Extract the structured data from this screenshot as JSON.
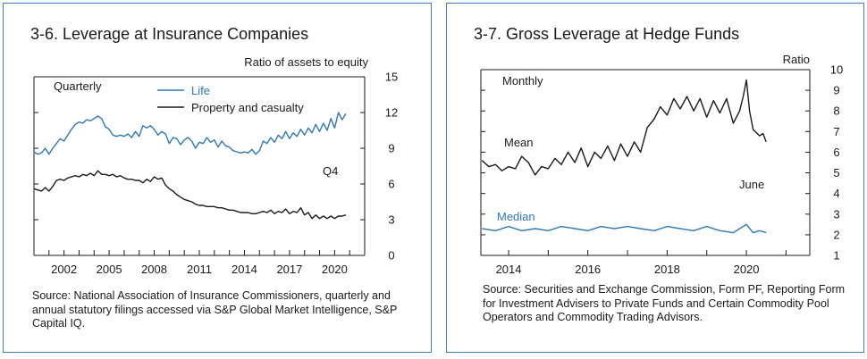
{
  "left": {
    "title": "3-6. Leverage at Insurance Companies",
    "source": "Source: National Association of Insurance Commissioners, quarterly and annual statutory filings accessed via S&P Global Market Intelligence, S&P Capital IQ."
  },
  "right": {
    "title": "3-7. Gross Leverage at Hedge Funds",
    "source": "Source: Securities and Exchange Commission, Form PF, Reporting Form for Investment Advisers to Private Funds and Certain Commodity Pool Operators and Commodity Trading Advisors."
  },
  "chart_data": [
    {
      "type": "line",
      "title": "3-6. Leverage at Insurance Companies",
      "ylabel": "Ratio of assets to equity",
      "frequency_label": "Quarterly",
      "end_label": "Q4",
      "xlim": [
        2000,
        2022
      ],
      "ylim": [
        0,
        15
      ],
      "x_ticks": [
        2002,
        2005,
        2008,
        2011,
        2014,
        2017,
        2020
      ],
      "y_ticks": [
        0,
        3,
        6,
        9,
        12,
        15
      ],
      "legend_position": "top-center",
      "series": [
        {
          "name": "Life",
          "color": "#2f78b6",
          "points": [
            [
              2000.0,
              8.7
            ],
            [
              2000.25,
              8.5
            ],
            [
              2000.5,
              8.6
            ],
            [
              2000.75,
              9.0
            ],
            [
              2001.0,
              8.5
            ],
            [
              2001.25,
              9.0
            ],
            [
              2001.5,
              9.4
            ],
            [
              2001.75,
              9.8
            ],
            [
              2002.0,
              9.6
            ],
            [
              2002.25,
              10.1
            ],
            [
              2002.5,
              10.6
            ],
            [
              2002.75,
              11.0
            ],
            [
              2003.0,
              11.2
            ],
            [
              2003.25,
              11.1
            ],
            [
              2003.5,
              11.4
            ],
            [
              2003.75,
              11.3
            ],
            [
              2004.0,
              11.5
            ],
            [
              2004.25,
              11.7
            ],
            [
              2004.5,
              11.5
            ],
            [
              2004.75,
              10.8
            ],
            [
              2005.0,
              10.6
            ],
            [
              2005.25,
              10.1
            ],
            [
              2005.5,
              10.0
            ],
            [
              2005.75,
              10.1
            ],
            [
              2006.0,
              10.0
            ],
            [
              2006.25,
              10.2
            ],
            [
              2006.5,
              9.9
            ],
            [
              2006.75,
              10.4
            ],
            [
              2007.0,
              10.0
            ],
            [
              2007.25,
              10.9
            ],
            [
              2007.5,
              10.7
            ],
            [
              2007.75,
              10.9
            ],
            [
              2008.0,
              10.6
            ],
            [
              2008.25,
              10.1
            ],
            [
              2008.5,
              10.4
            ],
            [
              2008.75,
              10.2
            ],
            [
              2009.0,
              9.4
            ],
            [
              2009.25,
              9.9
            ],
            [
              2009.5,
              9.8
            ],
            [
              2009.75,
              9.3
            ],
            [
              2010.0,
              9.7
            ],
            [
              2010.25,
              9.9
            ],
            [
              2010.5,
              9.6
            ],
            [
              2010.75,
              9.0
            ],
            [
              2011.0,
              9.5
            ],
            [
              2011.25,
              9.4
            ],
            [
              2011.5,
              9.9
            ],
            [
              2011.75,
              9.5
            ],
            [
              2012.0,
              9.7
            ],
            [
              2012.25,
              9.1
            ],
            [
              2012.5,
              9.6
            ],
            [
              2012.75,
              9.2
            ],
            [
              2013.0,
              9.1
            ],
            [
              2013.25,
              8.8
            ],
            [
              2013.5,
              8.7
            ],
            [
              2013.75,
              8.6
            ],
            [
              2014.0,
              8.7
            ],
            [
              2014.25,
              8.6
            ],
            [
              2014.5,
              8.9
            ],
            [
              2014.75,
              8.5
            ],
            [
              2015.0,
              8.8
            ],
            [
              2015.25,
              9.6
            ],
            [
              2015.5,
              9.4
            ],
            [
              2015.75,
              9.9
            ],
            [
              2016.0,
              9.5
            ],
            [
              2016.25,
              10.1
            ],
            [
              2016.5,
              9.8
            ],
            [
              2016.75,
              10.4
            ],
            [
              2017.0,
              9.8
            ],
            [
              2017.25,
              10.3
            ],
            [
              2017.5,
              10.0
            ],
            [
              2017.75,
              10.6
            ],
            [
              2018.0,
              10.1
            ],
            [
              2018.25,
              10.7
            ],
            [
              2018.5,
              10.3
            ],
            [
              2018.75,
              11.0
            ],
            [
              2019.0,
              10.4
            ],
            [
              2019.25,
              11.1
            ],
            [
              2019.5,
              10.5
            ],
            [
              2019.75,
              11.5
            ],
            [
              2020.0,
              10.7
            ],
            [
              2020.25,
              12.0
            ],
            [
              2020.5,
              11.4
            ],
            [
              2020.75,
              11.9
            ]
          ]
        },
        {
          "name": "Property and casualty",
          "color": "#1a1a1a",
          "points": [
            [
              2000.0,
              5.6
            ],
            [
              2000.25,
              5.5
            ],
            [
              2000.5,
              5.4
            ],
            [
              2000.75,
              5.7
            ],
            [
              2001.0,
              5.4
            ],
            [
              2001.25,
              5.8
            ],
            [
              2001.5,
              6.3
            ],
            [
              2001.75,
              6.4
            ],
            [
              2002.0,
              6.3
            ],
            [
              2002.25,
              6.5
            ],
            [
              2002.5,
              6.6
            ],
            [
              2002.75,
              6.7
            ],
            [
              2003.0,
              6.6
            ],
            [
              2003.25,
              6.8
            ],
            [
              2003.5,
              6.7
            ],
            [
              2003.75,
              6.9
            ],
            [
              2004.0,
              6.7
            ],
            [
              2004.25,
              7.1
            ],
            [
              2004.5,
              6.8
            ],
            [
              2004.75,
              6.8
            ],
            [
              2005.0,
              6.7
            ],
            [
              2005.25,
              6.8
            ],
            [
              2005.5,
              6.6
            ],
            [
              2005.75,
              6.7
            ],
            [
              2006.0,
              6.5
            ],
            [
              2006.25,
              6.4
            ],
            [
              2006.5,
              6.4
            ],
            [
              2006.75,
              6.3
            ],
            [
              2007.0,
              6.3
            ],
            [
              2007.25,
              6.1
            ],
            [
              2007.5,
              6.4
            ],
            [
              2007.75,
              6.2
            ],
            [
              2008.0,
              6.6
            ],
            [
              2008.25,
              6.4
            ],
            [
              2008.5,
              6.5
            ],
            [
              2008.75,
              5.9
            ],
            [
              2009.0,
              5.6
            ],
            [
              2009.25,
              5.4
            ],
            [
              2009.5,
              5.1
            ],
            [
              2009.75,
              4.9
            ],
            [
              2010.0,
              4.7
            ],
            [
              2010.25,
              4.6
            ],
            [
              2010.5,
              4.5
            ],
            [
              2010.75,
              4.3
            ],
            [
              2011.0,
              4.2
            ],
            [
              2011.25,
              4.2
            ],
            [
              2011.5,
              4.1
            ],
            [
              2011.75,
              4.1
            ],
            [
              2012.0,
              4.1
            ],
            [
              2012.25,
              4.0
            ],
            [
              2012.5,
              4.0
            ],
            [
              2012.75,
              3.9
            ],
            [
              2013.0,
              3.8
            ],
            [
              2013.25,
              3.8
            ],
            [
              2013.5,
              3.7
            ],
            [
              2013.75,
              3.6
            ],
            [
              2014.0,
              3.6
            ],
            [
              2014.25,
              3.6
            ],
            [
              2014.5,
              3.5
            ],
            [
              2014.75,
              3.5
            ],
            [
              2015.0,
              3.6
            ],
            [
              2015.25,
              3.7
            ],
            [
              2015.5,
              3.6
            ],
            [
              2015.75,
              3.8
            ],
            [
              2016.0,
              3.5
            ],
            [
              2016.25,
              3.7
            ],
            [
              2016.5,
              3.6
            ],
            [
              2016.75,
              3.9
            ],
            [
              2017.0,
              3.5
            ],
            [
              2017.25,
              3.7
            ],
            [
              2017.5,
              3.6
            ],
            [
              2017.75,
              4.0
            ],
            [
              2018.0,
              3.4
            ],
            [
              2018.25,
              3.6
            ],
            [
              2018.5,
              3.1
            ],
            [
              2018.75,
              3.4
            ],
            [
              2019.0,
              3.1
            ],
            [
              2019.25,
              3.3
            ],
            [
              2019.5,
              3.1
            ],
            [
              2019.75,
              3.3
            ],
            [
              2020.0,
              3.1
            ],
            [
              2020.25,
              3.3
            ],
            [
              2020.5,
              3.3
            ],
            [
              2020.75,
              3.4
            ]
          ]
        }
      ]
    },
    {
      "type": "line",
      "title": "3-7. Gross Leverage at Hedge Funds",
      "ylabel": "Ratio",
      "frequency_label": "Monthly",
      "end_label": "June",
      "xlim": [
        2013.3,
        2021.6
      ],
      "ylim": [
        1,
        10
      ],
      "x_ticks": [
        2014,
        2016,
        2018,
        2020
      ],
      "y_ticks": [
        1,
        2,
        3,
        4,
        5,
        6,
        7,
        8,
        9,
        10
      ],
      "legend_position": "inline",
      "series": [
        {
          "name": "Mean",
          "color": "#1a1a1a",
          "points": [
            [
              2013.33,
              5.6
            ],
            [
              2013.5,
              5.3
            ],
            [
              2013.67,
              5.4
            ],
            [
              2013.83,
              5.1
            ],
            [
              2014.0,
              5.3
            ],
            [
              2014.17,
              5.2
            ],
            [
              2014.33,
              5.8
            ],
            [
              2014.5,
              5.5
            ],
            [
              2014.67,
              4.9
            ],
            [
              2014.83,
              5.3
            ],
            [
              2015.0,
              5.2
            ],
            [
              2015.17,
              5.7
            ],
            [
              2015.33,
              5.4
            ],
            [
              2015.5,
              6.0
            ],
            [
              2015.67,
              5.5
            ],
            [
              2015.83,
              6.2
            ],
            [
              2016.0,
              5.3
            ],
            [
              2016.17,
              6.0
            ],
            [
              2016.33,
              5.7
            ],
            [
              2016.5,
              6.3
            ],
            [
              2016.67,
              5.6
            ],
            [
              2016.83,
              6.4
            ],
            [
              2017.0,
              5.8
            ],
            [
              2017.17,
              6.5
            ],
            [
              2017.33,
              6.0
            ],
            [
              2017.5,
              7.2
            ],
            [
              2017.67,
              7.6
            ],
            [
              2017.83,
              8.2
            ],
            [
              2018.0,
              7.8
            ],
            [
              2018.17,
              8.6
            ],
            [
              2018.33,
              8.1
            ],
            [
              2018.5,
              8.7
            ],
            [
              2018.67,
              8.0
            ],
            [
              2018.83,
              8.6
            ],
            [
              2019.0,
              7.7
            ],
            [
              2019.17,
              8.5
            ],
            [
              2019.33,
              7.9
            ],
            [
              2019.5,
              8.6
            ],
            [
              2019.67,
              7.4
            ],
            [
              2019.83,
              8.0
            ],
            [
              2019.92,
              8.7
            ],
            [
              2020.0,
              9.5
            ],
            [
              2020.08,
              8.0
            ],
            [
              2020.17,
              7.1
            ],
            [
              2020.33,
              6.8
            ],
            [
              2020.42,
              6.9
            ],
            [
              2020.5,
              6.5
            ]
          ]
        },
        {
          "name": "Median",
          "color": "#2f78b6",
          "points": [
            [
              2013.33,
              2.3
            ],
            [
              2013.67,
              2.2
            ],
            [
              2014.0,
              2.4
            ],
            [
              2014.33,
              2.2
            ],
            [
              2014.67,
              2.3
            ],
            [
              2015.0,
              2.2
            ],
            [
              2015.33,
              2.4
            ],
            [
              2015.67,
              2.3
            ],
            [
              2016.0,
              2.2
            ],
            [
              2016.33,
              2.4
            ],
            [
              2016.67,
              2.3
            ],
            [
              2017.0,
              2.4
            ],
            [
              2017.33,
              2.3
            ],
            [
              2017.67,
              2.2
            ],
            [
              2018.0,
              2.4
            ],
            [
              2018.33,
              2.3
            ],
            [
              2018.67,
              2.2
            ],
            [
              2019.0,
              2.4
            ],
            [
              2019.33,
              2.2
            ],
            [
              2019.67,
              2.1
            ],
            [
              2019.83,
              2.3
            ],
            [
              2020.0,
              2.5
            ],
            [
              2020.17,
              2.1
            ],
            [
              2020.33,
              2.2
            ],
            [
              2020.5,
              2.1
            ]
          ]
        }
      ]
    }
  ]
}
